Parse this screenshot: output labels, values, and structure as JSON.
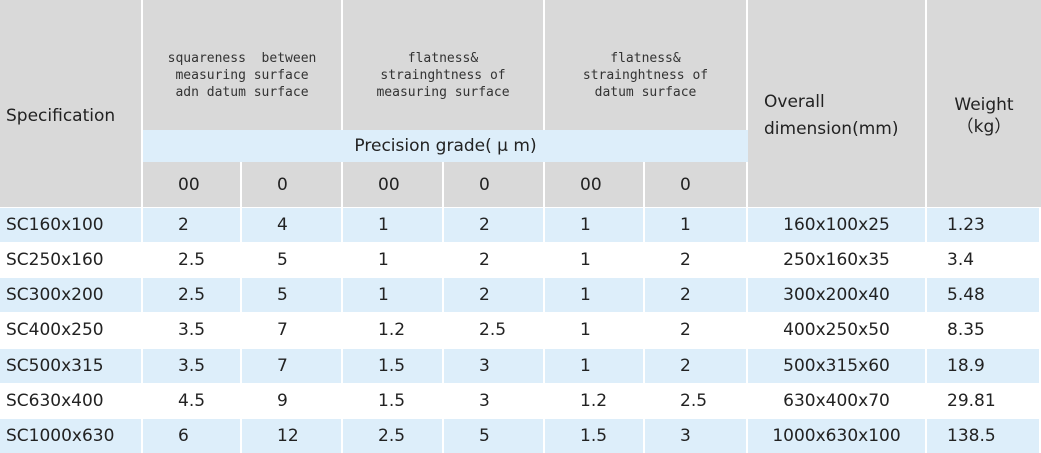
{
  "header": {
    "specification": "Specification",
    "groups": [
      {
        "lines": [
          "squareness  between",
          "measuring surface",
          "adn datum surface"
        ]
      },
      {
        "lines": [
          "flatness&",
          "strainghtness of",
          "measuring surface"
        ]
      },
      {
        "lines": [
          "flatness&",
          "strainghtness of",
          "datum surface"
        ]
      }
    ],
    "precision": "Precision grade( μ m)",
    "grades": [
      "00",
      "0",
      "00",
      "0",
      "00",
      "0"
    ],
    "overall": [
      "Overall",
      "dimension(mm)"
    ],
    "weight": [
      "Weight",
      "（kg）"
    ]
  },
  "table": {
    "rows": [
      [
        "SC160x100",
        "2",
        "4",
        "1",
        "2",
        "1",
        "1",
        "160x100x25",
        "1.23"
      ],
      [
        "SC250x160",
        "2.5",
        "5",
        "1",
        "2",
        "1",
        "2",
        "250x160x35",
        "3.4"
      ],
      [
        "SC300x200",
        "2.5",
        "5",
        "1",
        "2",
        "1",
        "2",
        "300x200x40",
        "5.48"
      ],
      [
        "SC400x250",
        "3.5",
        "7",
        "1.2",
        "2.5",
        "1",
        "2",
        "400x250x50",
        "8.35"
      ],
      [
        "SC500x315",
        "3.5",
        "7",
        "1.5",
        "3",
        "1",
        "2",
        "500x315x60",
        "18.9"
      ],
      [
        "SC630x400",
        "4.5",
        "9",
        "1.5",
        "3",
        "1.2",
        "2.5",
        "630x400x70",
        "29.81"
      ],
      [
        "SC1000x630",
        "6",
        "12",
        "2.5",
        "5",
        "1.5",
        "3",
        "1000x630x100",
        "138.5"
      ]
    ]
  }
}
